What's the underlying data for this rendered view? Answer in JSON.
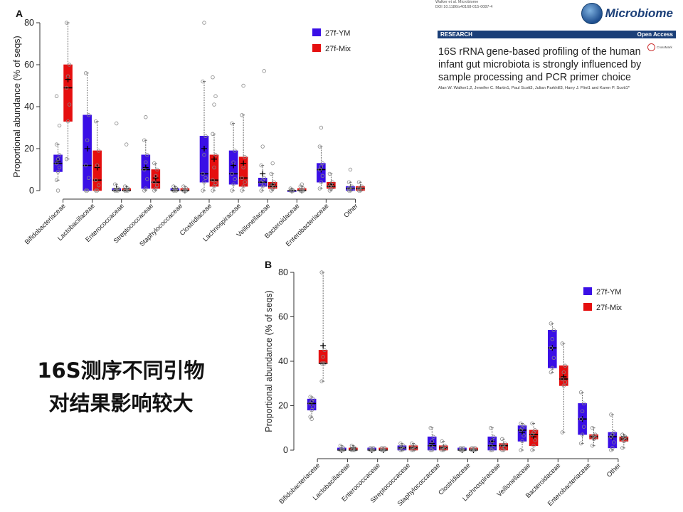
{
  "paper": {
    "journal_line1": "Walker et al. Microbiome",
    "journal_line2": "DOI 10.1186/s40168-015-0087-4",
    "logo_text": "Microbiome",
    "section": "RESEARCH",
    "access": "Open Access",
    "title": "16S rRNA gene-based profiling of the human infant gut microbiota is strongly influenced by sample processing and PCR primer choice",
    "crossmark": "CrossMark",
    "authors": "Alan W. Walker1,2, Jennifer C. Martin1, Paul Scott3, Julian Parkhill3, Harry J. Flint1 and Karen P. Scott1*"
  },
  "caption": {
    "line1": "16S测序不同引物",
    "line2": "对结果影响较大"
  },
  "colors": {
    "ym": "#3a0fe6",
    "mix": "#e50f0f"
  },
  "chart_data": [
    {
      "type": "box",
      "panel_label": "A",
      "ylabel": "Proportional abundance (% of seqs)",
      "ylim": [
        0,
        80
      ],
      "yticks": [
        0,
        20,
        40,
        60,
        80
      ],
      "categories": [
        "Bifidobacteriaceae",
        "Lactobacillaceae",
        "Enterococcaceae",
        "Streptococcaceae",
        "Staphylococcaceae",
        "Clostridiaceae",
        "Lachnospiraceae",
        "Veillonellaceae",
        "Bacteroidaceae",
        "Enterobacteriaceae",
        "Other"
      ],
      "legend": [
        "27f-YM",
        "27f-Mix"
      ],
      "legend_position": "top-right",
      "series": [
        {
          "name": "27f-YM",
          "boxes": [
            {
              "q1": 9,
              "median": 13,
              "q3": 17,
              "mean": 14,
              "whisker_low": 5,
              "whisker_high": 22,
              "outliers": [
                0,
                31,
                45
              ]
            },
            {
              "q1": 0,
              "median": 12,
              "q3": 36,
              "mean": 20,
              "whisker_low": 0,
              "whisker_high": 56,
              "outliers": []
            },
            {
              "q1": 0,
              "median": 0,
              "q3": 1,
              "mean": 1,
              "whisker_low": 0,
              "whisker_high": 3,
              "outliers": [
                32
              ]
            },
            {
              "q1": 1,
              "median": 10,
              "q3": 17,
              "mean": 11,
              "whisker_low": 0,
              "whisker_high": 24,
              "outliers": [
                35
              ]
            },
            {
              "q1": 0,
              "median": 0,
              "q3": 1,
              "mean": 1,
              "whisker_low": 0,
              "whisker_high": 2,
              "outliers": []
            },
            {
              "q1": 4,
              "median": 8,
              "q3": 26,
              "mean": 20,
              "whisker_low": 0,
              "whisker_high": 52,
              "outliers": [
                80
              ]
            },
            {
              "q1": 3,
              "median": 8,
              "q3": 19,
              "mean": 12,
              "whisker_low": 0,
              "whisker_high": 32,
              "outliers": []
            },
            {
              "q1": 2,
              "median": 4,
              "q3": 6,
              "mean": 8,
              "whisker_low": 0,
              "whisker_high": 12,
              "outliers": [
                21,
                57
              ]
            },
            {
              "q1": 0,
              "median": 0,
              "q3": 0,
              "mean": 0,
              "whisker_low": 0,
              "whisker_high": 1,
              "outliers": []
            },
            {
              "q1": 4,
              "median": 10,
              "q3": 13,
              "mean": 10,
              "whisker_low": 1,
              "whisker_high": 21,
              "outliers": [
                30
              ]
            },
            {
              "q1": 0,
              "median": 1,
              "q3": 2,
              "mean": 1,
              "whisker_low": 0,
              "whisker_high": 4,
              "outliers": [
                10
              ]
            }
          ]
        },
        {
          "name": "27f-Mix",
          "boxes": [
            {
              "q1": 33,
              "median": 49,
              "q3": 60,
              "mean": 53,
              "whisker_low": 15,
              "whisker_high": 80,
              "outliers": []
            },
            {
              "q1": 0,
              "median": 5,
              "q3": 19,
              "mean": 11,
              "whisker_low": 0,
              "whisker_high": 33,
              "outliers": []
            },
            {
              "q1": 0,
              "median": 0,
              "q3": 1,
              "mean": 1,
              "whisker_low": 0,
              "whisker_high": 2,
              "outliers": [
                22
              ]
            },
            {
              "q1": 1,
              "median": 4,
              "q3": 10,
              "mean": 6,
              "whisker_low": 0,
              "whisker_high": 13,
              "outliers": []
            },
            {
              "q1": 0,
              "median": 0,
              "q3": 1,
              "mean": 0,
              "whisker_low": 0,
              "whisker_high": 2,
              "outliers": []
            },
            {
              "q1": 2,
              "median": 5,
              "q3": 17,
              "mean": 15,
              "whisker_low": 0,
              "whisker_high": 27,
              "outliers": [
                41,
                45,
                54
              ]
            },
            {
              "q1": 2,
              "median": 6,
              "q3": 16,
              "mean": 13,
              "whisker_low": 0,
              "whisker_high": 36,
              "outliers": [
                50
              ]
            },
            {
              "q1": 1,
              "median": 2,
              "q3": 4,
              "mean": 3,
              "whisker_low": 0,
              "whisker_high": 8,
              "outliers": [
                13
              ]
            },
            {
              "q1": 0,
              "median": 0,
              "q3": 1,
              "mean": 0,
              "whisker_low": 0,
              "whisker_high": 2,
              "outliers": [
                3
              ]
            },
            {
              "q1": 1,
              "median": 2,
              "q3": 4,
              "mean": 3,
              "whisker_low": 0,
              "whisker_high": 8,
              "outliers": []
            },
            {
              "q1": 0,
              "median": 1,
              "q3": 2,
              "mean": 1,
              "whisker_low": 0,
              "whisker_high": 4,
              "outliers": []
            }
          ]
        }
      ]
    },
    {
      "type": "box",
      "panel_label": "B",
      "ylabel": "Proportional abundance (% of seqs)",
      "ylim": [
        0,
        80
      ],
      "yticks": [
        0,
        20,
        40,
        60,
        80
      ],
      "categories": [
        "Bifidobacteriaceae",
        "Lactobacillaceae",
        "Enterococcaceae",
        "Streptococcaceae",
        "Staphylococcaceae",
        "Clostridiaceae",
        "Lachnospiraceae",
        "Veillonellaceae",
        "Bacteroidaceae",
        "Enterobacteriaceae",
        "Other"
      ],
      "legend": [
        "27f-YM",
        "27f-Mix"
      ],
      "legend_position": "top-right",
      "series": [
        {
          "name": "27f-YM",
          "boxes": [
            {
              "q1": 18,
              "median": 21,
              "q3": 23,
              "mean": 21,
              "whisker_low": 15,
              "whisker_high": 24,
              "outliers": [
                14
              ]
            },
            {
              "q1": 0,
              "median": 0,
              "q3": 1,
              "mean": 0,
              "whisker_low": 0,
              "whisker_high": 2,
              "outliers": []
            },
            {
              "q1": 0,
              "median": 0,
              "q3": 1,
              "mean": 0,
              "whisker_low": 0,
              "whisker_high": 1,
              "outliers": []
            },
            {
              "q1": 0,
              "median": 1,
              "q3": 2,
              "mean": 1,
              "whisker_low": 0,
              "whisker_high": 3,
              "outliers": []
            },
            {
              "q1": 0,
              "median": 2,
              "q3": 6,
              "mean": 3,
              "whisker_low": 0,
              "whisker_high": 10,
              "outliers": []
            },
            {
              "q1": 0,
              "median": 0,
              "q3": 1,
              "mean": 0,
              "whisker_low": 0,
              "whisker_high": 1,
              "outliers": []
            },
            {
              "q1": 0,
              "median": 2,
              "q3": 6,
              "mean": 4,
              "whisker_low": 0,
              "whisker_high": 10,
              "outliers": []
            },
            {
              "q1": 4,
              "median": 9,
              "q3": 11,
              "mean": 8,
              "whisker_low": 0,
              "whisker_high": 12,
              "outliers": []
            },
            {
              "q1": 37,
              "median": 46,
              "q3": 54,
              "mean": 46,
              "whisker_low": 35,
              "whisker_high": 57,
              "outliers": []
            },
            {
              "q1": 7,
              "median": 14,
              "q3": 21,
              "mean": 14,
              "whisker_low": 3,
              "whisker_high": 26,
              "outliers": []
            },
            {
              "q1": 1,
              "median": 6,
              "q3": 8,
              "mean": 6,
              "whisker_low": 0,
              "whisker_high": 16,
              "outliers": []
            }
          ]
        },
        {
          "name": "27f-Mix",
          "boxes": [
            {
              "q1": 39,
              "median": 39,
              "q3": 45,
              "mean": 47,
              "whisker_low": 31,
              "whisker_high": 80,
              "outliers": []
            },
            {
              "q1": 0,
              "median": 0,
              "q3": 1,
              "mean": 1,
              "whisker_low": 0,
              "whisker_high": 2,
              "outliers": []
            },
            {
              "q1": 0,
              "median": 0,
              "q3": 1,
              "mean": 0,
              "whisker_low": 0,
              "whisker_high": 1,
              "outliers": []
            },
            {
              "q1": 0,
              "median": 1,
              "q3": 2,
              "mean": 1,
              "whisker_low": 0,
              "whisker_high": 3,
              "outliers": []
            },
            {
              "q1": 0,
              "median": 1,
              "q3": 2,
              "mean": 1,
              "whisker_low": 0,
              "whisker_high": 4,
              "outliers": []
            },
            {
              "q1": 0,
              "median": 0,
              "q3": 1,
              "mean": 0,
              "whisker_low": 0,
              "whisker_high": 1,
              "outliers": []
            },
            {
              "q1": 0,
              "median": 2,
              "q3": 3,
              "mean": 2,
              "whisker_low": 0,
              "whisker_high": 5,
              "outliers": []
            },
            {
              "q1": 2,
              "median": 7,
              "q3": 9,
              "mean": 6,
              "whisker_low": 0,
              "whisker_high": 12,
              "outliers": []
            },
            {
              "q1": 29,
              "median": 32,
              "q3": 38,
              "mean": 33,
              "whisker_low": 8,
              "whisker_high": 48,
              "outliers": []
            },
            {
              "q1": 5,
              "median": 6,
              "q3": 7,
              "mean": 6,
              "whisker_low": 2,
              "whisker_high": 10,
              "outliers": []
            },
            {
              "q1": 4,
              "median": 5,
              "q3": 6,
              "mean": 6,
              "whisker_low": 1,
              "whisker_high": 7,
              "outliers": []
            }
          ]
        }
      ]
    }
  ]
}
